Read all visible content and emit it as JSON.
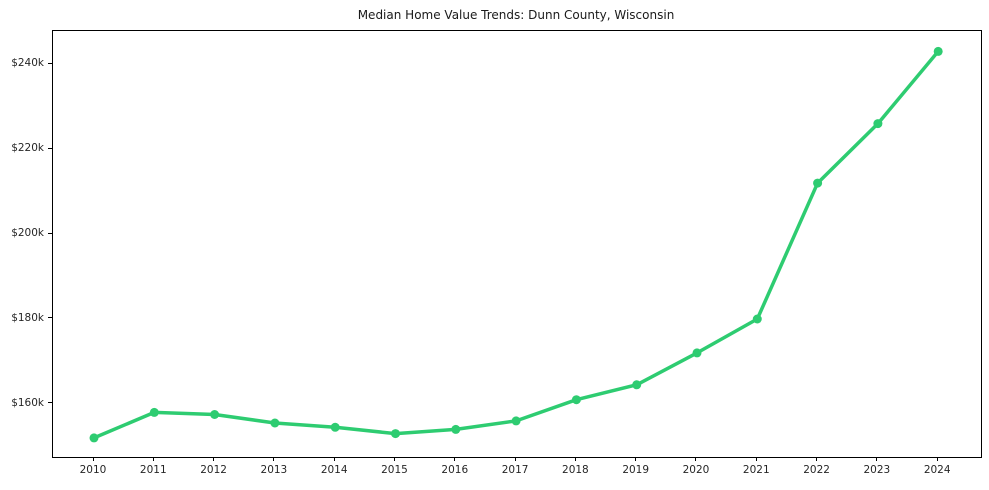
{
  "colors": {
    "line": "#2ecc71",
    "marker": "#2ecc71",
    "spine": "#000000",
    "title_text": "#1a1a1a",
    "tick_text": "#262626",
    "background": "#ffffff"
  },
  "chart_data": {
    "type": "line",
    "title": "Median Home Value Trends: Dunn County, Wisconsin",
    "series_name": "Median Home Value",
    "x": [
      2010,
      2011,
      2012,
      2013,
      2014,
      2015,
      2016,
      2017,
      2018,
      2019,
      2020,
      2021,
      2022,
      2023,
      2024
    ],
    "values": [
      152000,
      158000,
      157500,
      155500,
      154500,
      153000,
      154000,
      156000,
      161000,
      164500,
      172000,
      180000,
      212000,
      226000,
      243000
    ],
    "xlabel": "",
    "ylabel": "",
    "xlim": [
      2009.32,
      2024.71
    ],
    "ylim": [
      147500,
      247800
    ],
    "xticks": [
      {
        "value": 2010,
        "label": "2010"
      },
      {
        "value": 2011,
        "label": "2011"
      },
      {
        "value": 2012,
        "label": "2012"
      },
      {
        "value": 2013,
        "label": "2013"
      },
      {
        "value": 2014,
        "label": "2014"
      },
      {
        "value": 2015,
        "label": "2015"
      },
      {
        "value": 2016,
        "label": "2016"
      },
      {
        "value": 2017,
        "label": "2017"
      },
      {
        "value": 2018,
        "label": "2018"
      },
      {
        "value": 2019,
        "label": "2019"
      },
      {
        "value": 2020,
        "label": "2020"
      },
      {
        "value": 2021,
        "label": "2021"
      },
      {
        "value": 2022,
        "label": "2022"
      },
      {
        "value": 2023,
        "label": "2023"
      },
      {
        "value": 2024,
        "label": "2024"
      }
    ],
    "yticks": [
      {
        "value": 160000,
        "label": "$160k"
      },
      {
        "value": 180000,
        "label": "$180k"
      },
      {
        "value": 200000,
        "label": "$200k"
      },
      {
        "value": 220000,
        "label": "$220k"
      },
      {
        "value": 240000,
        "label": "$240k"
      }
    ],
    "grid": false,
    "legend": "none",
    "marker": "circle",
    "line_width": 3.5,
    "marker_radius": 4.5
  }
}
